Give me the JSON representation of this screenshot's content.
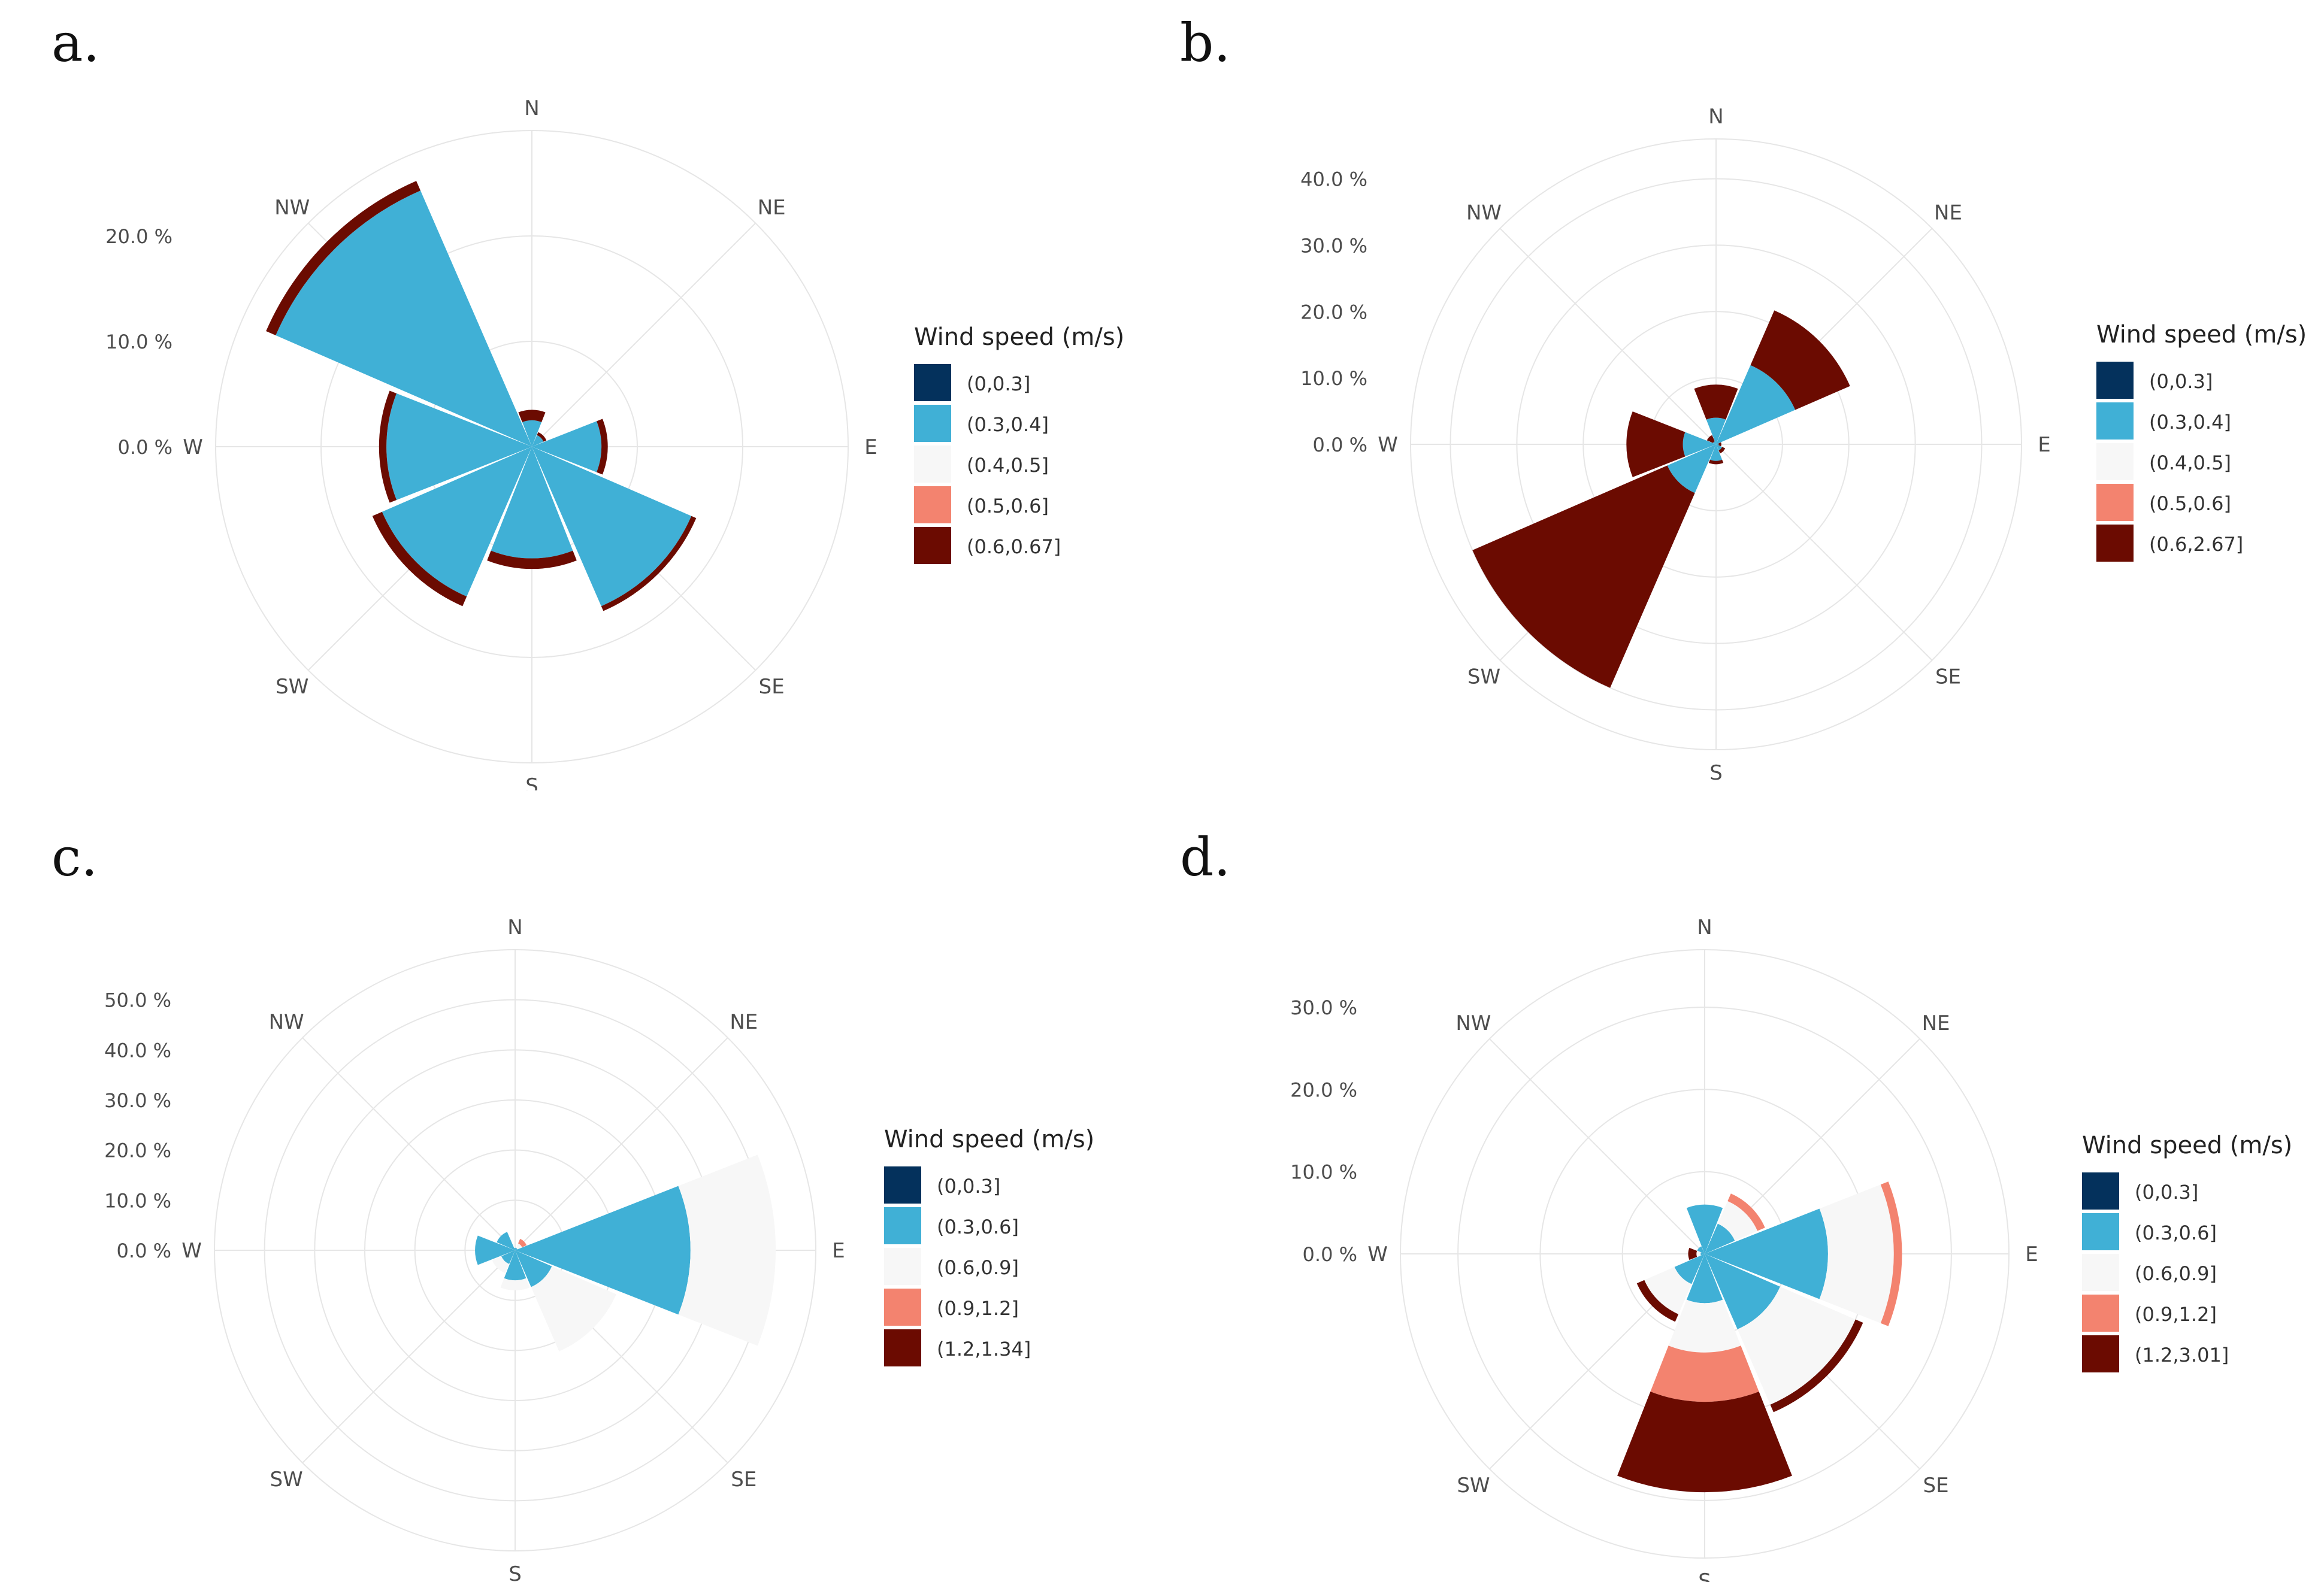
{
  "colors": {
    "dark_navy": "#04315c",
    "sky_blue": "#40b0d6",
    "off_white": "#f7f7f7",
    "salmon": "#f3836f",
    "dark_red": "#6b0b01",
    "grid": "#e6e6e6",
    "axis_text": "#4d4d4d"
  },
  "chart_data": [
    {
      "panel_label": "a.",
      "type": "wind-rose",
      "directions": [
        "N",
        "NE",
        "E",
        "SE",
        "S",
        "SW",
        "W",
        "NW"
      ],
      "radial_ticks": [
        "0.0 %",
        "10.0 %",
        "20.0 %"
      ],
      "radial_tick_values": [
        0,
        10,
        20
      ],
      "r_max": 30,
      "legend_title": "Wind speed (m/s)",
      "bins": [
        "(0,0.3]",
        "(0.3,0.4]",
        "(0.4,0.5]",
        "(0.5,0.6]",
        "(0.6,0.67]"
      ],
      "stack_percent": [
        [
          0,
          2.5,
          0,
          0,
          1
        ],
        [
          0,
          1.2,
          0,
          0,
          0.3
        ],
        [
          0,
          6.6,
          0,
          0,
          0.6
        ],
        [
          0,
          16.5,
          0,
          0,
          0.5
        ],
        [
          0,
          10.6,
          0,
          0,
          1
        ],
        [
          0,
          15.5,
          0,
          0,
          1
        ],
        [
          0,
          13.8,
          0,
          0,
          0.7
        ],
        [
          0,
          26.5,
          0,
          0,
          1
        ]
      ]
    },
    {
      "panel_label": "b.",
      "type": "wind-rose",
      "directions": [
        "N",
        "NE",
        "E",
        "SE",
        "S",
        "SW",
        "W",
        "NW"
      ],
      "radial_ticks": [
        "0.0 %",
        "10.0 %",
        "20.0 %",
        "30.0 %",
        "40.0 %"
      ],
      "radial_tick_values": [
        0,
        10,
        20,
        30,
        40
      ],
      "r_max": 46,
      "legend_title": "Wind speed (m/s)",
      "bins": [
        "(0,0.3]",
        "(0.3,0.4]",
        "(0.4,0.5]",
        "(0.5,0.6]",
        "(0.6,2.67]"
      ],
      "stack_percent": [
        [
          0,
          4,
          0,
          0,
          5
        ],
        [
          0,
          13,
          0,
          0,
          9
        ],
        [
          0,
          0.4,
          0,
          0,
          0.4
        ],
        [
          0,
          1,
          0,
          0,
          0.5
        ],
        [
          0,
          2.5,
          0,
          0,
          0.5
        ],
        [
          0,
          8,
          0,
          0,
          32
        ],
        [
          0,
          5,
          0,
          0,
          8.5
        ],
        [
          0,
          0.5,
          0,
          0,
          1
        ]
      ]
    },
    {
      "panel_label": "c.",
      "type": "wind-rose",
      "directions": [
        "N",
        "NE",
        "E",
        "SE",
        "S",
        "SW",
        "W",
        "NW"
      ],
      "radial_ticks": [
        "0.0 %",
        "10.0 %",
        "20.0 %",
        "30.0 %",
        "40.0 %",
        "50.0 %"
      ],
      "radial_tick_values": [
        0,
        10,
        20,
        30,
        40,
        50
      ],
      "r_max": 60,
      "legend_title": "Wind speed (m/s)",
      "bins": [
        "(0,0.3]",
        "(0.3,0.6]",
        "(0.6,0.9]",
        "(0.9,1.2]",
        "(1.2,1.34]"
      ],
      "stack_percent": [
        [
          0,
          0.5,
          0,
          0,
          0
        ],
        [
          0,
          0.5,
          1,
          1,
          0
        ],
        [
          0,
          35,
          17,
          0,
          0
        ],
        [
          0,
          8,
          14,
          0,
          0
        ],
        [
          0,
          6,
          2,
          0,
          0
        ],
        [
          0,
          3,
          2,
          0,
          0
        ],
        [
          0,
          8,
          0,
          0,
          0
        ],
        [
          0,
          4,
          0,
          0,
          0
        ]
      ]
    },
    {
      "panel_label": "d.",
      "type": "wind-rose",
      "directions": [
        "N",
        "NE",
        "E",
        "SE",
        "S",
        "SW",
        "W",
        "NW"
      ],
      "radial_ticks": [
        "0.0 %",
        "10.0 %",
        "20.0 %",
        "30.0 %"
      ],
      "radial_tick_values": [
        0,
        10,
        20,
        30
      ],
      "r_max": 37,
      "legend_title": "Wind speed (m/s)",
      "bins": [
        "(0,0.3]",
        "(0.3,0.6]",
        "(0.6,0.9]",
        "(0.9,1.2]",
        "(1.2,3.01]"
      ],
      "stack_percent": [
        [
          0,
          6,
          0,
          0,
          0
        ],
        [
          0,
          4,
          3,
          1,
          0
        ],
        [
          0,
          15,
          8,
          1,
          0
        ],
        [
          0,
          10,
          10,
          0,
          1
        ],
        [
          0,
          6,
          6,
          6,
          11
        ],
        [
          0,
          4,
          4,
          0,
          1
        ],
        [
          0,
          0.5,
          0.5,
          0,
          1
        ],
        [
          0,
          1,
          0,
          0,
          0
        ]
      ]
    }
  ]
}
